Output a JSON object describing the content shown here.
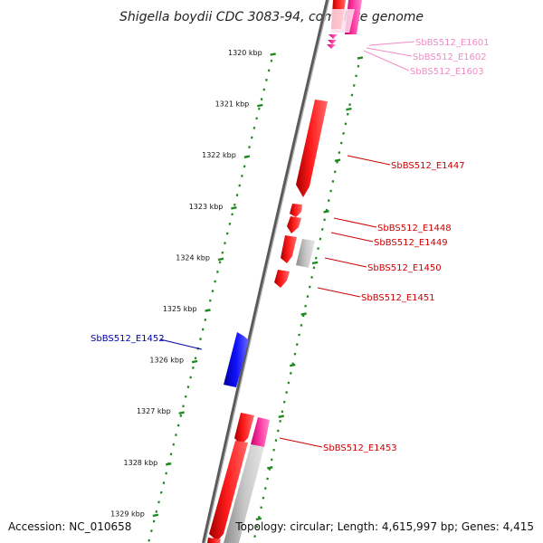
{
  "title": "Shigella boydii CDC 3083-94, complete genome",
  "footer": {
    "accession": "Accession: NC_010658",
    "topology": "Topology: circular; Length: 4,615,997 bp; Genes: 4,415"
  },
  "colors": {
    "forward_gene": "#ff0000",
    "reverse_gene": "#ff2a9a",
    "pseudo_gene": "#b9b9b9",
    "blue_gene": "#0000ee",
    "pink_label": "#f08cc4",
    "red_label": "#cc0000",
    "blue_label": "#0000aa",
    "tick": "#1f8a1f",
    "backbone": "#808080"
  },
  "kbp_ticks": [
    {
      "label": "1320 kbp",
      "pos": 1320
    },
    {
      "label": "1321 kbp",
      "pos": 1321
    },
    {
      "label": "1322 kbp",
      "pos": 1322
    },
    {
      "label": "1323 kbp",
      "pos": 1323
    },
    {
      "label": "1324 kbp",
      "pos": 1324
    },
    {
      "label": "1325 kbp",
      "pos": 1325
    },
    {
      "label": "1326 kbp",
      "pos": 1326
    },
    {
      "label": "1327 kbp",
      "pos": 1327
    },
    {
      "label": "1328 kbp",
      "pos": 1328
    },
    {
      "label": "1329 kbp",
      "pos": 1329
    }
  ],
  "gene_labels": [
    {
      "id": "g1601",
      "text": "SbBS512_E1601",
      "color": "pink"
    },
    {
      "id": "g1602",
      "text": "SbBS512_E1602",
      "color": "pink"
    },
    {
      "id": "g1603",
      "text": "SbBS512_E1603",
      "color": "pink"
    },
    {
      "id": "g1447",
      "text": "SbBS512_E1447",
      "color": "red"
    },
    {
      "id": "g1448",
      "text": "SbBS512_E1448",
      "color": "red"
    },
    {
      "id": "g1449",
      "text": "SbBS512_E1449",
      "color": "red"
    },
    {
      "id": "g1450",
      "text": "SbBS512_E1450",
      "color": "red"
    },
    {
      "id": "g1451",
      "text": "SbBS512_E1451",
      "color": "red"
    },
    {
      "id": "g1452",
      "text": "SbBS512_E1452",
      "color": "blue"
    },
    {
      "id": "g1453",
      "text": "SbBS512_E1453",
      "color": "red"
    }
  ]
}
